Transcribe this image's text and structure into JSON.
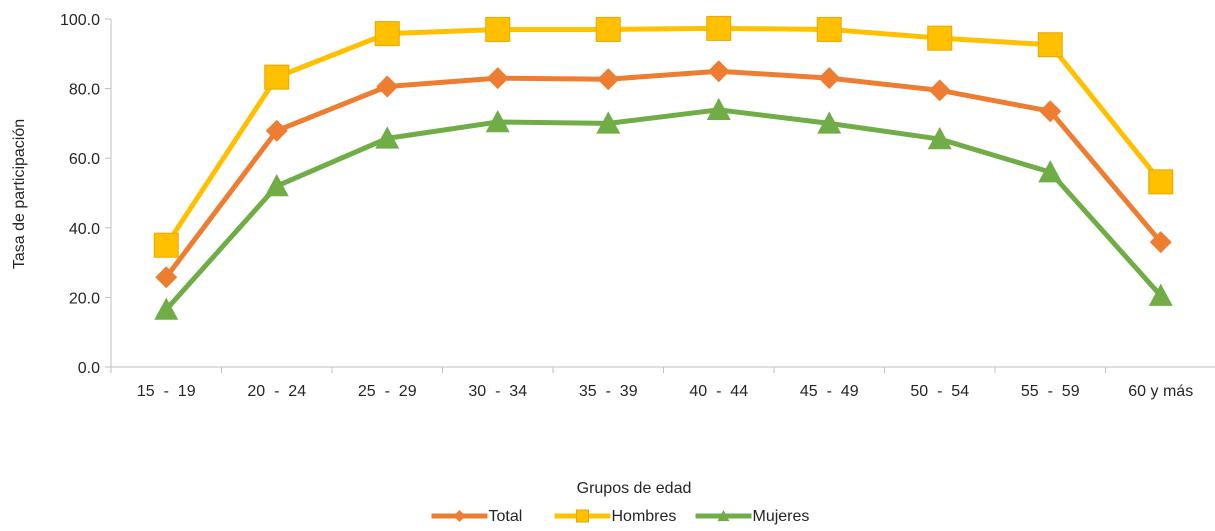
{
  "chart_data": {
    "type": "line",
    "title": "",
    "xlabel": "Grupos de edad",
    "ylabel": "Tasa de participación",
    "ylim": [
      0,
      100
    ],
    "yticks": [
      "0.0",
      "20.0",
      "40.0",
      "60.0",
      "80.0",
      "100.0"
    ],
    "ytick_values": [
      0,
      20,
      40,
      60,
      80,
      100
    ],
    "grid": false,
    "legend_position": "bottom",
    "categories": [
      "15  -  19",
      "20  -  24",
      "25  -  29",
      "30  -  34",
      "35  -  39",
      "40  -  44",
      "45  -  49",
      "50  -  54",
      "55  -  59",
      "60 y más"
    ],
    "series": [
      {
        "name": "Total",
        "color": "#ED7D31",
        "marker": "diamond",
        "values": [
          25.8,
          67.9,
          80.6,
          83.0,
          82.7,
          85.0,
          83.0,
          79.5,
          73.5,
          35.9
        ]
      },
      {
        "name": "Hombres",
        "color": "#FFC000",
        "marker": "square",
        "values": [
          35.0,
          83.3,
          95.8,
          97.0,
          97.0,
          97.3,
          97.0,
          94.5,
          92.6,
          53.2
        ]
      },
      {
        "name": "Mujeres",
        "color": "#70AD47",
        "marker": "triangle",
        "values": [
          16.5,
          52.0,
          65.7,
          70.4,
          70.0,
          73.9,
          70.0,
          65.5,
          56.0,
          20.5
        ]
      }
    ]
  }
}
